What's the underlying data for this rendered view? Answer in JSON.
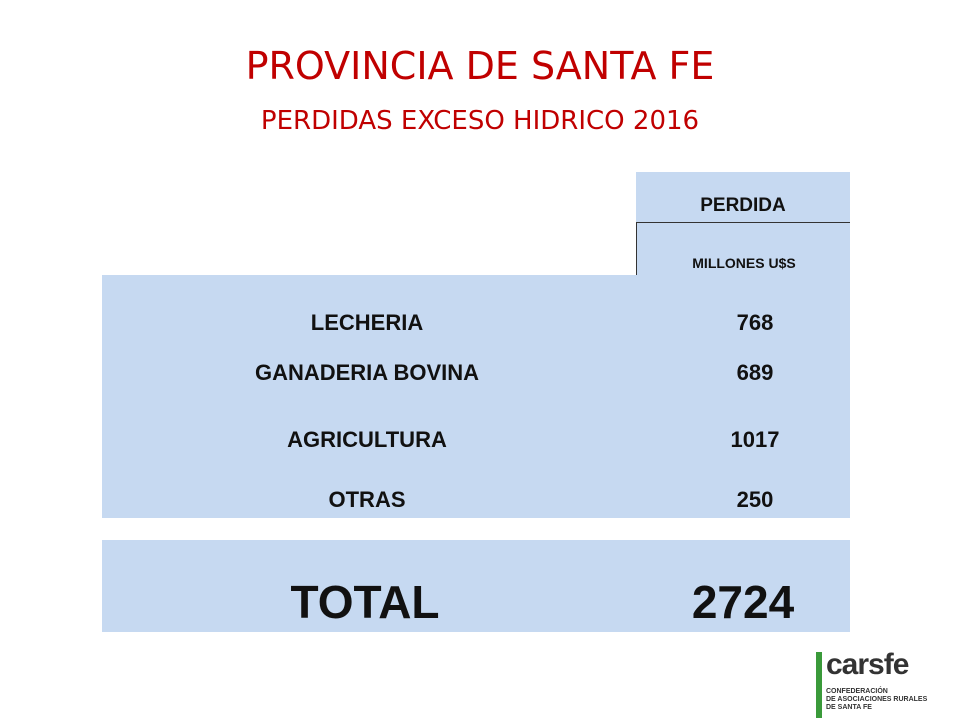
{
  "header": {
    "title": "PROVINCIA DE SANTA FE",
    "subtitle": "PERDIDAS EXCESO HIDRICO 2016"
  },
  "table": {
    "header": [
      "PERDIDA",
      "MILLONES U$S"
    ],
    "rows": [
      [
        "LECHERIA",
        768
      ],
      [
        "GANADERIA BOVINA",
        689
      ],
      [
        "AGRICULTURA",
        1017
      ],
      [
        "OTRAS",
        250
      ]
    ],
    "total": [
      "TOTAL",
      2724
    ]
  },
  "logo": {
    "name": "carsfe",
    "lines": [
      "CONFEDERACIÓN",
      "DE ASOCIACIONES RURALES",
      "DE SANTA FE"
    ]
  }
}
